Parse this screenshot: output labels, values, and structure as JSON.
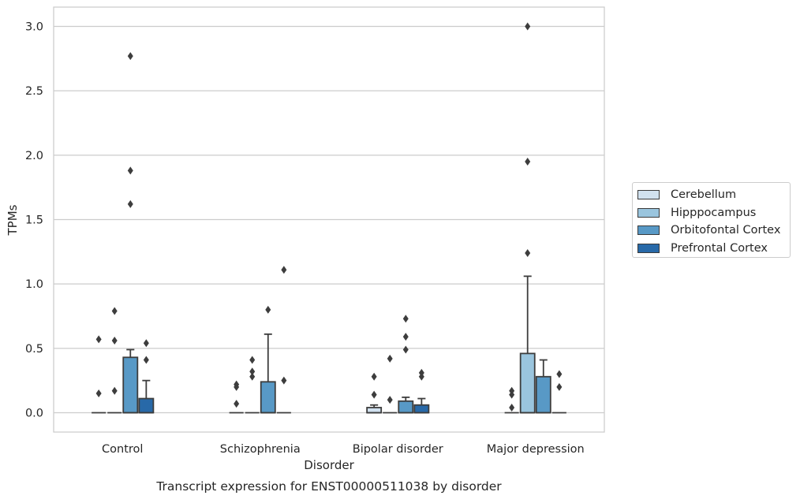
{
  "chart_data": {
    "type": "box",
    "title": "",
    "caption": "Transcript expression for ENST00000511038 by disorder",
    "xlabel": "Disorder",
    "ylabel": "TPMs",
    "ylim": [
      -0.15,
      3.15
    ],
    "yticks": [
      "0.0",
      "0.5",
      "1.0",
      "1.5",
      "2.0",
      "2.5",
      "3.0"
    ],
    "ytick_values": [
      0.0,
      0.5,
      1.0,
      1.5,
      2.0,
      2.5,
      3.0
    ],
    "grid": "horizontal",
    "legend_position": "right",
    "categories": [
      "Control",
      "Schizophrenia",
      "Bipolar disorder",
      "Major depression"
    ],
    "series": [
      {
        "name": "Cerebellum",
        "color": "#d1e1ef",
        "boxes": [
          {
            "q1": 0,
            "median": 0,
            "q3": 0,
            "whisker_low": 0,
            "whisker_high": 0,
            "outliers": [
              0.57,
              0.15
            ]
          },
          {
            "q1": 0,
            "median": 0,
            "q3": 0,
            "whisker_low": 0,
            "whisker_high": 0,
            "outliers": [
              0.22,
              0.2,
              0.07
            ]
          },
          {
            "q1": 0,
            "median": 0,
            "q3": 0.04,
            "whisker_low": 0,
            "whisker_high": 0.06,
            "outliers": [
              0.28,
              0.14
            ]
          },
          {
            "q1": 0,
            "median": 0,
            "q3": 0,
            "whisker_low": 0,
            "whisker_high": 0,
            "outliers": [
              0.17,
              0.14,
              0.04
            ]
          }
        ]
      },
      {
        "name": "Hipppocampus",
        "color": "#9ac5de",
        "boxes": [
          {
            "q1": 0,
            "median": 0,
            "q3": 0,
            "whisker_low": 0,
            "whisker_high": 0,
            "outliers": [
              0.79,
              0.56,
              0.17
            ]
          },
          {
            "q1": 0,
            "median": 0,
            "q3": 0,
            "whisker_low": 0,
            "whisker_high": 0,
            "outliers": [
              0.41,
              0.32,
              0.28
            ]
          },
          {
            "q1": 0,
            "median": 0,
            "q3": 0,
            "whisker_low": 0,
            "whisker_high": 0,
            "outliers": [
              0.42,
              0.1
            ]
          },
          {
            "q1": 0,
            "median": 0,
            "q3": 0.46,
            "whisker_low": 0,
            "whisker_high": 1.06,
            "outliers": [
              3.0,
              1.95,
              1.24
            ]
          }
        ]
      },
      {
        "name": "Orbitofontal Cortex",
        "color": "#5899c6",
        "boxes": [
          {
            "q1": 0,
            "median": 0,
            "q3": 0.43,
            "whisker_low": 0,
            "whisker_high": 0.49,
            "outliers": [
              2.77,
              1.88,
              1.62
            ]
          },
          {
            "q1": 0,
            "median": 0,
            "q3": 0.24,
            "whisker_low": 0,
            "whisker_high": 0.61,
            "outliers": [
              0.8
            ]
          },
          {
            "q1": 0,
            "median": 0,
            "q3": 0.09,
            "whisker_low": 0,
            "whisker_high": 0.12,
            "outliers": [
              0.73,
              0.59,
              0.49
            ]
          },
          {
            "q1": 0,
            "median": 0,
            "q3": 0.28,
            "whisker_low": 0,
            "whisker_high": 0.41,
            "outliers": []
          }
        ]
      },
      {
        "name": "Prefrontal Cortex",
        "color": "#2869a8",
        "boxes": [
          {
            "q1": 0,
            "median": 0,
            "q3": 0.11,
            "whisker_low": 0,
            "whisker_high": 0.25,
            "outliers": [
              0.54,
              0.41
            ]
          },
          {
            "q1": 0,
            "median": 0,
            "q3": 0,
            "whisker_low": 0,
            "whisker_high": 0,
            "outliers": [
              1.11,
              0.25
            ]
          },
          {
            "q1": 0,
            "median": 0,
            "q3": 0.06,
            "whisker_low": 0,
            "whisker_high": 0.11,
            "outliers": [
              0.31,
              0.28
            ]
          },
          {
            "q1": 0,
            "median": 0,
            "q3": 0,
            "whisker_low": 0,
            "whisker_high": 0,
            "outliers": [
              0.3,
              0.2
            ]
          }
        ]
      }
    ]
  }
}
